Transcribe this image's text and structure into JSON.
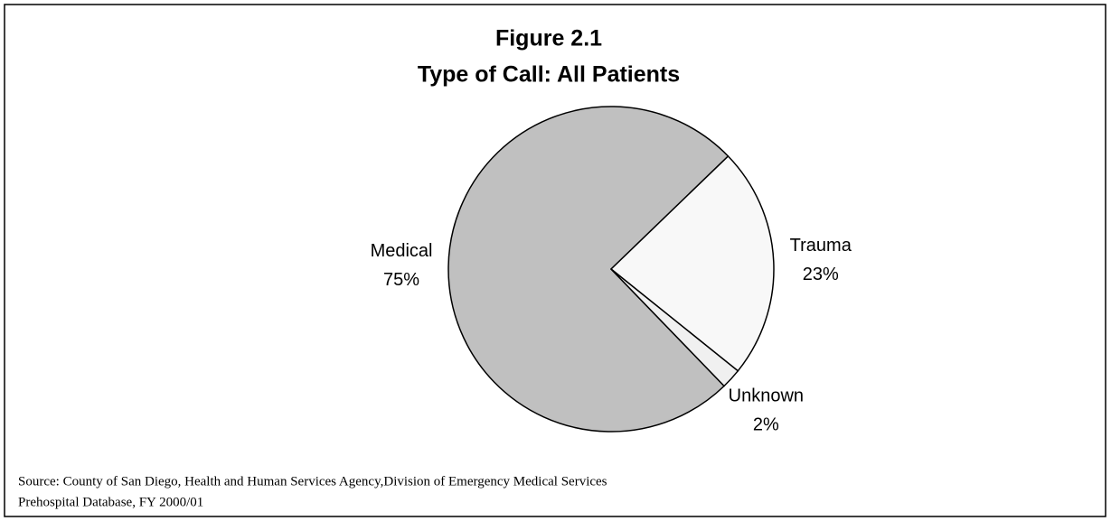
{
  "chart_data": {
    "type": "pie",
    "title": [
      "Figure 2.1",
      "Type of Call: All Patients"
    ],
    "categories": [
      "Medical",
      "Trauma",
      "Unknown"
    ],
    "values": [
      75,
      23,
      2
    ],
    "value_labels": [
      "75%",
      "23%",
      "2%"
    ],
    "colors": [
      "#c0c0c0",
      "#f8f8f8",
      "#f0f0f0"
    ],
    "source": [
      "Source: County of San Diego, Health and Human Services Agency,Division of Emergency Medical Services",
      "Prehospital Database, FY 2000/01"
    ]
  }
}
